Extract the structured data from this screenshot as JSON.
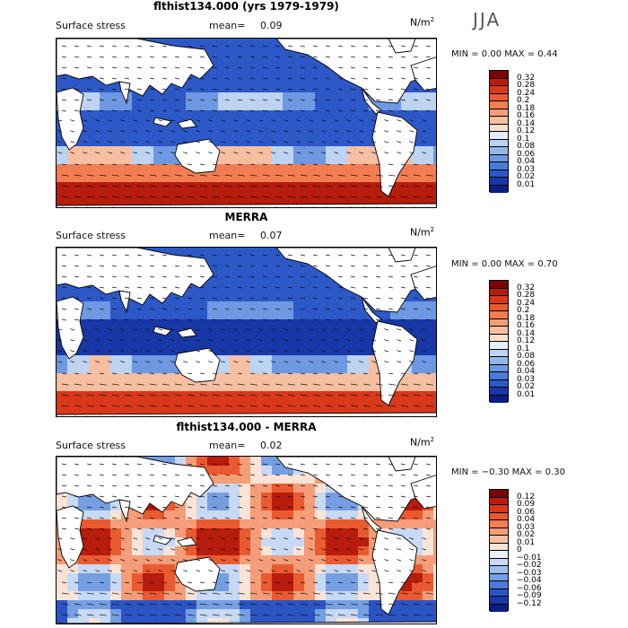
{
  "season": "JJA",
  "panels": [
    {
      "title": "flthist134.000 (yrs 1979-1979)",
      "variable": "Surface stress",
      "mean_label": "mean=",
      "mean_value": "0.09",
      "units_base": "N/m",
      "units_exp": "2",
      "minmax": "MIN =     0.00  MAX =     0.44",
      "colorbar": {
        "labels": [
          "0.32",
          "0.28",
          "0.24",
          "0.2",
          "0.18",
          "0.16",
          "0.14",
          "0.12",
          "0.1",
          "0.08",
          "0.06",
          "0.04",
          "0.03",
          "0.02",
          "0.01"
        ],
        "colors": [
          "#7a0403",
          "#b71c0c",
          "#d9381b",
          "#ea5a30",
          "#f27d52",
          "#f59d78",
          "#f7bfa2",
          "#f9dfcf",
          "#e6eefa",
          "#bcd3f2",
          "#94b7ea",
          "#6e99e2",
          "#4b79d8",
          "#2d58c7",
          "#1838a8",
          "#0a1e80"
        ]
      }
    },
    {
      "title": "MERRA",
      "variable": "Surface stress",
      "mean_label": "mean=",
      "mean_value": "0.07",
      "units_base": "N/m",
      "units_exp": "2",
      "minmax": "MIN =     0.00  MAX =     0.70",
      "colorbar": {
        "labels": [
          "0.32",
          "0.28",
          "0.24",
          "0.2",
          "0.18",
          "0.16",
          "0.14",
          "0.12",
          "0.1",
          "0.08",
          "0.06",
          "0.04",
          "0.03",
          "0.02",
          "0.01"
        ],
        "colors": [
          "#7a0403",
          "#b71c0c",
          "#d9381b",
          "#ea5a30",
          "#f27d52",
          "#f59d78",
          "#f7bfa2",
          "#f9dfcf",
          "#e6eefa",
          "#bcd3f2",
          "#94b7ea",
          "#6e99e2",
          "#4b79d8",
          "#2d58c7",
          "#1838a8",
          "#0a1e80"
        ]
      }
    },
    {
      "title": "flthist134.000 - MERRA",
      "variable": "Surface stress",
      "mean_label": "mean=",
      "mean_value": "0.02",
      "units_base": "N/m",
      "units_exp": "2",
      "minmax": "MIN =  −0.30  MAX =     0.30",
      "colorbar": {
        "labels": [
          "0.12",
          "0.09",
          "0.06",
          "0.04",
          "0.03",
          "0.02",
          "0.01",
          "0",
          "−0.01",
          "−0.02",
          "−0.03",
          "−0.04",
          "−0.06",
          "−0.09",
          "−0.12"
        ],
        "colors": [
          "#7a0403",
          "#b71c0c",
          "#d9381b",
          "#ea5a30",
          "#f27d52",
          "#f59d78",
          "#f7bfa2",
          "#fbe3d6",
          "#e9f0fb",
          "#c7d9f4",
          "#9fbeec",
          "#769fe3",
          "#4d7bd8",
          "#2c55c4",
          "#1838a8",
          "#0a1e80"
        ]
      }
    }
  ]
}
